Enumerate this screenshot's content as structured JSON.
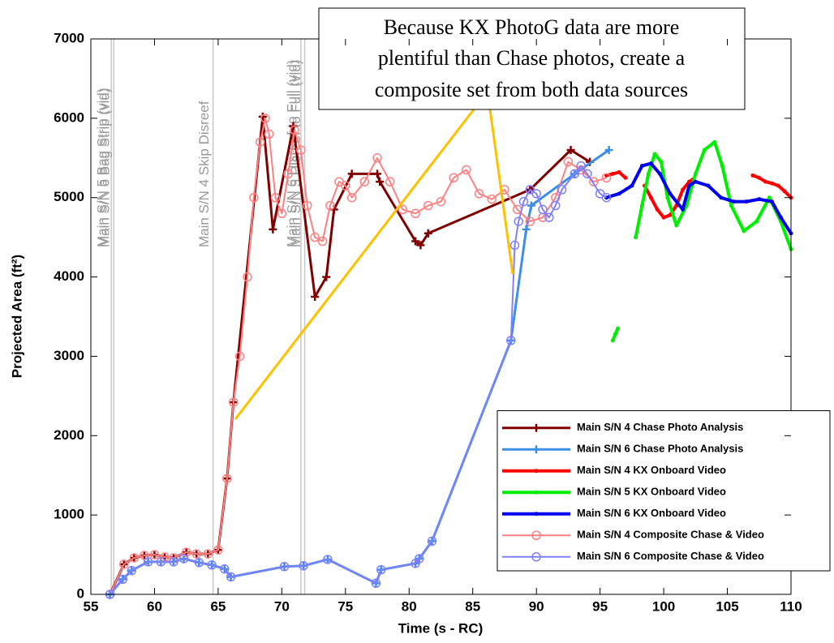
{
  "chart_data": {
    "type": "line",
    "xlabel": "Time (s - RC)",
    "ylabel": "Projected Area (ft²)",
    "xlim": [
      55,
      110
    ],
    "xticks": [
      55,
      60,
      65,
      70,
      75,
      80,
      85,
      90,
      95,
      100,
      105,
      110
    ],
    "ylim": [
      0,
      7000
    ],
    "yticks": [
      0,
      1000,
      2000,
      3000,
      4000,
      5000,
      6000,
      7000
    ],
    "grid": false,
    "legend": "lower right",
    "vlines": [
      {
        "x": 56.6,
        "label": "Main S/N 5 Bag Strip (vid)"
      },
      {
        "x": 56.8,
        "label": "Main S/N 6 Bag Strip (vid)"
      },
      {
        "x": 64.6,
        "label": "Main S/N 4 Skip Disreef"
      },
      {
        "x": 71.5,
        "label": "Main S/N 6 Disreef to Full (vid)"
      },
      {
        "x": 71.8,
        "label": "Main S/N 5 Disreef to Full (vid)"
      }
    ],
    "annotation": {
      "lines": [
        "Because KX PhotoG data are more",
        "plentiful than Chase photos, create a",
        "composite set from both data sources"
      ]
    },
    "series": [
      {
        "name": "Main S/N 4 Chase Photo Analysis",
        "color": "#800000",
        "marker": "+",
        "x": [
          56.5,
          57.6,
          58.4,
          59.2,
          60,
          60.8,
          61.5,
          62.5,
          63.3,
          64.2,
          65,
          65.7,
          66.2,
          68.5,
          69.3,
          70.9,
          72.6,
          73.5,
          74.1,
          75.5,
          77.5,
          77.7,
          80.5,
          80.9,
          81.5,
          89.5,
          92.7,
          94.2
        ],
        "values": [
          0,
          380,
          460,
          490,
          500,
          470,
          460,
          530,
          510,
          510,
          560,
          1460,
          2420,
          6020,
          4600,
          5900,
          3750,
          4000,
          4850,
          5300,
          5300,
          5200,
          4450,
          4400,
          4550,
          5100,
          5600,
          5450
        ]
      },
      {
        "name": "Main S/N 6 Chase Photo Analysis",
        "color": "#3d8ee6",
        "marker": "+",
        "x": [
          56.5,
          57.5,
          58.2,
          59.5,
          60.5,
          61.5,
          62.3,
          63.5,
          64.5,
          65.5,
          66,
          70.2,
          71.7,
          73.6,
          77.4,
          77.8,
          80.5,
          80.8,
          81.8,
          88,
          89.2,
          89.6,
          93,
          95.7
        ],
        "values": [
          0,
          190,
          300,
          410,
          410,
          410,
          450,
          400,
          370,
          320,
          220,
          350,
          360,
          440,
          140,
          310,
          390,
          450,
          670,
          3200,
          4600,
          4900,
          5300,
          5600
        ]
      },
      {
        "name": "Main S/N 4 KX Onboard Video",
        "color": "#ff0000",
        "marker": ".",
        "x": [
          95.5,
          96,
          96.5,
          97,
          97.2,
          98.5,
          99,
          99.5,
          100,
          100.5,
          101,
          101.5,
          102,
          102.3,
          106,
          107,
          107.5,
          108,
          108.5,
          109,
          109.5,
          110
        ],
        "values": [
          5280,
          5300,
          5320,
          5250,
          null,
          5150,
          5000,
          4850,
          4750,
          4780,
          4900,
          5100,
          5200,
          5230,
          null,
          5280,
          5250,
          5200,
          5180,
          5150,
          5080,
          5000
        ]
      },
      {
        "name": "Main S/N 5 KX Onboard Video",
        "color": "#00ee00",
        "marker": ".",
        "x": [
          96,
          96.2,
          96.4,
          97,
          97.8,
          98.3,
          98.8,
          99.3,
          99.8,
          100.3,
          101,
          101.8,
          102.5,
          103.2,
          104,
          104.6,
          105.3,
          106.3,
          107.3,
          108.3,
          109.2,
          110
        ],
        "values": [
          3200,
          3280,
          3350,
          null,
          4500,
          4900,
          5300,
          5550,
          5450,
          5000,
          4650,
          4900,
          5300,
          5600,
          5700,
          5400,
          4900,
          4580,
          4700,
          5000,
          4700,
          4350
        ]
      },
      {
        "name": "Main S/N 6 KX Onboard Video",
        "color": "#0000ee",
        "marker": ".",
        "x": [
          95.5,
          96.5,
          97.5,
          98.3,
          99,
          99.7,
          100.5,
          101.5,
          102,
          102.5,
          103.5,
          104.5,
          105.5,
          106.5,
          107.5,
          108.5,
          109.2,
          110
        ],
        "values": [
          5000,
          5050,
          5150,
          5400,
          5430,
          5300,
          5050,
          4850,
          5150,
          5200,
          5150,
          5000,
          4950,
          4950,
          4980,
          4950,
          4750,
          4550
        ]
      },
      {
        "name": "Main S/N 4 Composite Chase & Video",
        "color": "#ff8080",
        "marker": "o",
        "x": [
          56.5,
          57.6,
          58.4,
          59.2,
          60,
          60.8,
          61.5,
          62.5,
          63.3,
          64.2,
          65,
          65.7,
          66.2,
          66.7,
          67.3,
          67.8,
          68.3,
          68.7,
          69,
          69.5,
          70,
          70.5,
          71,
          71.5,
          72,
          72.6,
          73.2,
          73.8,
          74.5,
          75,
          75.5,
          76.5,
          77.5,
          78.5,
          79.5,
          80.5,
          81.5,
          82.5,
          83.5,
          84.5,
          85.5,
          86.5,
          87.5,
          88.5,
          89.5,
          90.5,
          91.5,
          92.5,
          93.5,
          94.5,
          95.5
        ],
        "values": [
          0,
          380,
          460,
          490,
          500,
          470,
          460,
          530,
          510,
          510,
          560,
          1460,
          2420,
          3000,
          4000,
          5000,
          5700,
          6000,
          5800,
          5000,
          4800,
          5300,
          5850,
          5600,
          4900,
          4500,
          4450,
          4900,
          5200,
          5150,
          5000,
          5200,
          5500,
          5200,
          4850,
          4800,
          4900,
          4950,
          5250,
          5350,
          5050,
          4980,
          5100,
          4850,
          4700,
          4750,
          5000,
          5450,
          5350,
          5200,
          5250
        ]
      },
      {
        "name": "Main S/N 6 Composite Chase & Video",
        "color": "#8080ff",
        "marker": "o",
        "x": [
          56.5,
          57.5,
          58.2,
          59.5,
          60.5,
          61.5,
          62.3,
          63.5,
          64.5,
          65.5,
          66,
          70.2,
          71.7,
          73.6,
          77.4,
          77.8,
          80.5,
          80.8,
          81.8,
          88,
          88.3,
          88.6,
          89,
          89.5,
          90,
          90.5,
          91,
          91.5,
          92,
          93,
          93.5,
          94,
          95,
          95.5
        ],
        "values": [
          0,
          190,
          300,
          410,
          410,
          410,
          450,
          400,
          370,
          320,
          220,
          350,
          360,
          440,
          140,
          310,
          390,
          450,
          670,
          3200,
          4400,
          4700,
          4950,
          5100,
          5050,
          4850,
          4750,
          4900,
          5100,
          5300,
          5400,
          5300,
          5050,
          5000
        ]
      }
    ]
  }
}
